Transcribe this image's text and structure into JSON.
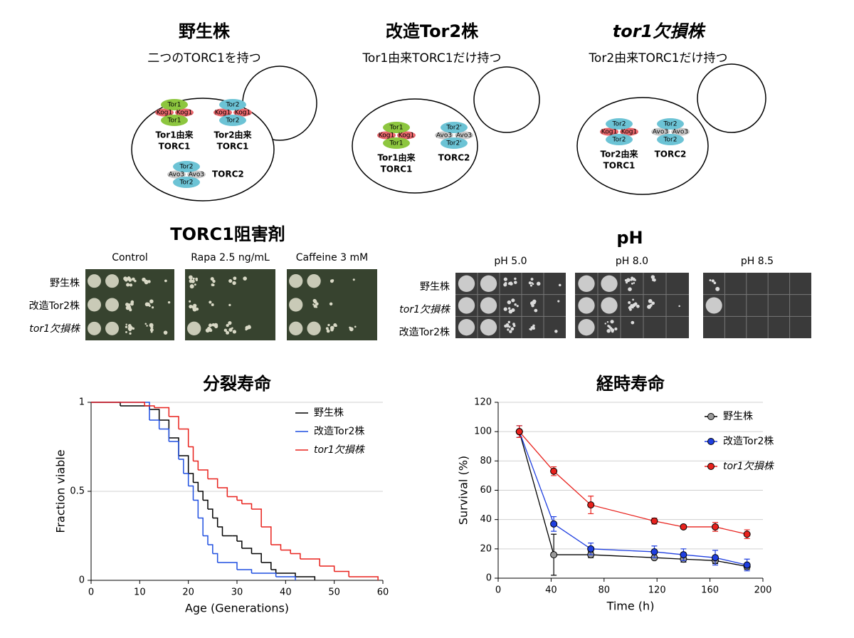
{
  "cells": [
    {
      "title": "野生株",
      "subtitle": "二つのTORC1を持つ",
      "complexes": [
        {
          "top": "Tor1",
          "left": "Kog1",
          "right": "Kog1",
          "bottom": "Tor1",
          "label": [
            "Tor1由来",
            "TORC1"
          ],
          "color": "#8dc63f",
          "side_color": "#e8666b"
        },
        {
          "top": "Tor2",
          "left": "Kog1",
          "right": "Kog1",
          "bottom": "Tor2",
          "label": [
            "Tor2由来",
            "TORC1"
          ],
          "color": "#6cc3d5",
          "side_color": "#e8666b"
        },
        {
          "top": "Tor2",
          "left": "Avo3",
          "right": "Avo3",
          "bottom": "Tor2",
          "label": [
            "TORC2"
          ],
          "color": "#6cc3d5",
          "side_color": "#c8c8c8"
        }
      ]
    },
    {
      "title": "改造Tor2株",
      "subtitle": "Tor1由来TORC1だけ持つ",
      "complexes": [
        {
          "top": "Tor1",
          "left": "Kog1",
          "right": "Kog1",
          "bottom": "Tor1",
          "label": [
            "Tor1由来",
            "TORC1"
          ],
          "color": "#8dc63f",
          "side_color": "#e8666b"
        },
        {
          "top": "Tor2'",
          "left": "Avo3",
          "right": "Avo3",
          "bottom": "Tor2'",
          "label": [
            "TORC2"
          ],
          "color": "#6cc3d5",
          "side_color": "#c8c8c8"
        }
      ]
    },
    {
      "title": "tor1欠損株",
      "subtitle": "Tor2由来TORC1だけ持つ",
      "complexes": [
        {
          "top": "Tor2",
          "left": "Kog1",
          "right": "Kog1",
          "bottom": "Tor2",
          "label": [
            "Tor2由来",
            "TORC1"
          ],
          "color": "#6cc3d5",
          "side_color": "#e8666b"
        },
        {
          "top": "Tor2",
          "left": "Avo3",
          "right": "Avo3",
          "bottom": "Tor2",
          "label": [
            "TORC2"
          ],
          "color": "#6cc3d5",
          "side_color": "#c8c8c8"
        }
      ]
    }
  ],
  "spot_assays": [
    {
      "title": "TORC1阻害剤",
      "columns": [
        "Control",
        "Rapa 2.5 ng/mL",
        "Caffeine 3 mM"
      ],
      "rows": [
        "野生株",
        "改造Tor2株",
        "tor1欠損株"
      ]
    },
    {
      "title": "pH",
      "columns": [
        "pH 5.0",
        "pH 8.0",
        "pH 8.5"
      ],
      "rows": [
        "野生株",
        "tor1欠損株",
        "改造Tor2株"
      ]
    }
  ],
  "chart_data": [
    {
      "type": "step",
      "title": "分裂寿命",
      "x_label": "Age (Generations)",
      "y_label": "Fraction viable",
      "xlim": [
        0,
        60
      ],
      "xticks": [
        0,
        10,
        20,
        30,
        40,
        50,
        60
      ],
      "ylim": [
        0,
        1
      ],
      "yticks": [
        0,
        0.5,
        1
      ],
      "grid": true,
      "legend": "upper right",
      "series": [
        {
          "name": "野生株",
          "color": "#000000",
          "x": [
            0,
            6,
            12,
            14,
            16,
            18,
            20,
            21,
            22,
            23,
            24,
            25,
            26,
            27,
            29,
            30,
            31,
            33,
            35,
            37,
            38,
            42,
            46
          ],
          "values": [
            1,
            0.98,
            0.96,
            0.9,
            0.8,
            0.7,
            0.6,
            0.55,
            0.5,
            0.45,
            0.4,
            0.35,
            0.3,
            0.25,
            0.25,
            0.22,
            0.18,
            0.15,
            0.1,
            0.06,
            0.04,
            0.02,
            0
          ]
        },
        {
          "name": "改造Tor2株",
          "color": "#1f4fe0",
          "x": [
            0,
            10,
            12,
            14,
            16,
            18,
            19,
            20,
            21,
            22,
            23,
            24,
            25,
            26,
            27,
            30,
            33,
            38,
            42
          ],
          "values": [
            1,
            1,
            0.9,
            0.85,
            0.78,
            0.68,
            0.6,
            0.53,
            0.45,
            0.35,
            0.25,
            0.2,
            0.15,
            0.1,
            0.1,
            0.06,
            0.04,
            0.02,
            0
          ]
        },
        {
          "name": "tor1欠損株",
          "color": "#e8211c",
          "x": [
            0,
            11,
            13,
            16,
            18,
            20,
            21,
            22,
            24,
            26,
            28,
            30,
            31,
            33,
            35,
            37,
            39,
            41,
            43,
            47,
            50,
            53,
            59
          ],
          "values": [
            1,
            0.98,
            0.97,
            0.92,
            0.85,
            0.75,
            0.67,
            0.62,
            0.57,
            0.52,
            0.47,
            0.45,
            0.43,
            0.4,
            0.3,
            0.2,
            0.17,
            0.15,
            0.12,
            0.08,
            0.05,
            0.02,
            0
          ]
        }
      ]
    },
    {
      "type": "line",
      "title": "経時寿命",
      "x_label": "Time (h)",
      "y_label": "Survival (%)",
      "xlim": [
        0,
        200
      ],
      "xticks": [
        0,
        40,
        80,
        120,
        160,
        200
      ],
      "ylim": [
        0,
        120
      ],
      "yticks": [
        0,
        20,
        40,
        60,
        80,
        100,
        120
      ],
      "grid": true,
      "legend": "upper right",
      "series": [
        {
          "name": "野生株",
          "color": "#9a9a9a",
          "line_color": "#000000",
          "x": [
            16,
            42,
            70,
            118,
            140,
            164,
            188
          ],
          "values": [
            100,
            16,
            16,
            14,
            13,
            12,
            8
          ],
          "errors": [
            4,
            14,
            2,
            1,
            2,
            2,
            2
          ]
        },
        {
          "name": "改造Tor2株",
          "color": "#1f3fe0",
          "line_color": "#1f3fe0",
          "x": [
            16,
            42,
            70,
            118,
            140,
            164,
            188
          ],
          "values": [
            100,
            37,
            20,
            18,
            16,
            14,
            9
          ],
          "errors": [
            4,
            5,
            4,
            4,
            4,
            5,
            4
          ]
        },
        {
          "name": "tor1欠損株",
          "color": "#e8211c",
          "line_color": "#e8211c",
          "x": [
            16,
            42,
            70,
            118,
            140,
            164,
            188
          ],
          "values": [
            100,
            73,
            50,
            39,
            35,
            35,
            30
          ],
          "errors": [
            4,
            3,
            6,
            2,
            1,
            3,
            3
          ]
        }
      ]
    }
  ]
}
